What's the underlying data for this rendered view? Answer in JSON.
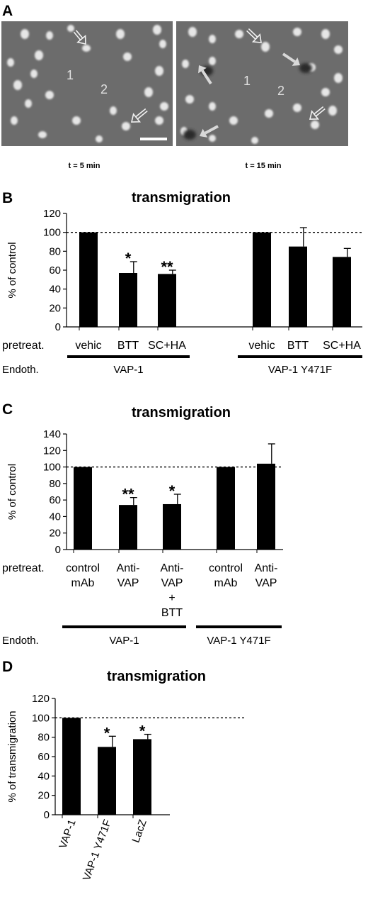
{
  "panel_a": {
    "letter": "A",
    "images": [
      {
        "time_label": "t = 5 min",
        "cell_labels": [
          "1",
          "2"
        ]
      },
      {
        "time_label": "t = 15 min",
        "cell_labels": [
          "1",
          "2"
        ]
      }
    ]
  },
  "chart_data": [
    {
      "panel": "B",
      "type": "bar",
      "title": "transmigration",
      "ylabel": "% of control",
      "ylim": [
        0,
        120
      ],
      "yticks": [
        0,
        20,
        40,
        60,
        80,
        100,
        120
      ],
      "reference_line": 100,
      "row_labels": {
        "pretreat": "pretreat.",
        "endoth": "Endoth."
      },
      "groups": [
        {
          "name": "VAP-1",
          "categories": [
            "vehic",
            "BTT",
            "SC+HA"
          ],
          "values": [
            100,
            57,
            56
          ],
          "errors": [
            0,
            12,
            4
          ],
          "significance": [
            "",
            "*",
            "**"
          ]
        },
        {
          "name": "VAP-1 Y471F",
          "categories": [
            "vehic",
            "BTT",
            "SC+HA"
          ],
          "values": [
            100,
            85,
            74
          ],
          "errors": [
            0,
            20,
            9
          ],
          "significance": [
            "",
            "",
            ""
          ]
        }
      ]
    },
    {
      "panel": "C",
      "type": "bar",
      "title": "transmigration",
      "ylabel": "% of control",
      "ylim": [
        0,
        140
      ],
      "yticks": [
        0,
        20,
        40,
        60,
        80,
        100,
        120,
        140
      ],
      "reference_line": 100,
      "row_labels": {
        "pretreat": "pretreat.",
        "endoth": "Endoth."
      },
      "groups": [
        {
          "name": "VAP-1",
          "categories": [
            [
              "control",
              "mAb"
            ],
            [
              "Anti-",
              "VAP"
            ],
            [
              "Anti-",
              "VAP",
              "+",
              "BTT"
            ]
          ],
          "values": [
            100,
            54,
            55
          ],
          "errors": [
            0,
            9,
            12
          ],
          "significance": [
            "",
            "**",
            "*"
          ]
        },
        {
          "name": "VAP-1 Y471F",
          "categories": [
            [
              "control",
              "mAb"
            ],
            [
              "Anti-",
              "VAP"
            ]
          ],
          "values": [
            100,
            104
          ],
          "errors": [
            0,
            24
          ],
          "significance": [
            "",
            ""
          ]
        }
      ]
    },
    {
      "panel": "D",
      "type": "bar",
      "title": "transmigration",
      "ylabel": "% of transmigration",
      "ylim": [
        0,
        120
      ],
      "yticks": [
        0,
        20,
        40,
        60,
        80,
        100,
        120
      ],
      "reference_line": 100,
      "categories": [
        "VAP-1",
        "VAP-1 Y471F",
        "LacZ"
      ],
      "values": [
        100,
        70,
        78
      ],
      "errors": [
        0,
        11,
        5
      ],
      "significance": [
        "",
        "*",
        "*"
      ]
    }
  ]
}
